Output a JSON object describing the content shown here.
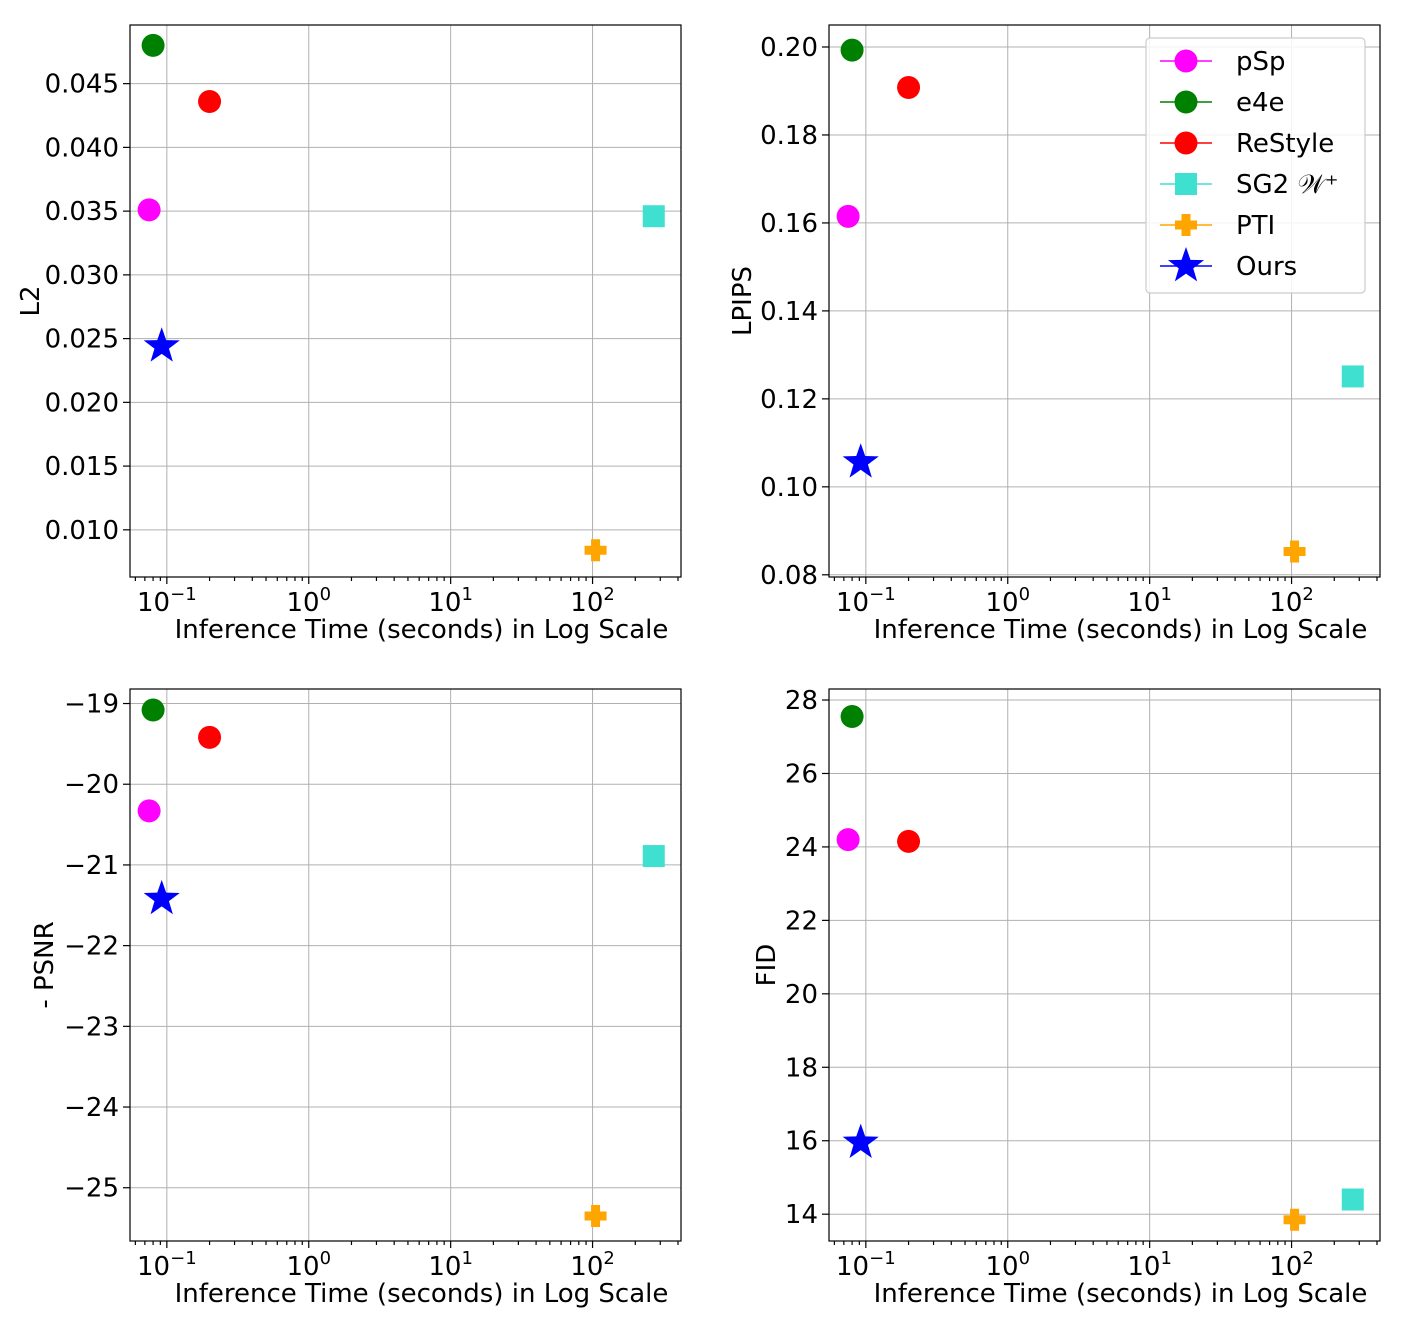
{
  "figure": {
    "legend": {
      "placement": "top-right of upper-right panel",
      "entries": [
        {
          "label": "pSp",
          "color": "#ff00ff",
          "marker": "circle"
        },
        {
          "label": "e4e",
          "color": "#008000",
          "marker": "circle"
        },
        {
          "label": "ReStyle",
          "color": "#ff0000",
          "marker": "circle"
        },
        {
          "label": "SG2 𝒲⁺",
          "color": "#40e0d0",
          "marker": "square"
        },
        {
          "label": "PTI",
          "color": "#ffa500",
          "marker": "plus"
        },
        {
          "label": "Ours",
          "color": "#0000ff",
          "marker": "star"
        }
      ]
    }
  },
  "chart_data": [
    {
      "type": "scatter",
      "title": "",
      "xlabel": "Inference Time (seconds) in Log Scale",
      "ylabel": "L2",
      "xscale": "log",
      "xlim": [
        0.055,
        420
      ],
      "ylim": [
        0.0063,
        0.0496
      ],
      "xticks": [
        0.1,
        1,
        10,
        100
      ],
      "xtick_labels": [
        {
          "base": "10",
          "exp": "−1"
        },
        {
          "base": "10",
          "exp": "0"
        },
        {
          "base": "10",
          "exp": "1"
        },
        {
          "base": "10",
          "exp": "2"
        }
      ],
      "yticks": [
        0.01,
        0.015,
        0.02,
        0.025,
        0.03,
        0.035,
        0.04,
        0.045
      ],
      "ytick_labels": [
        "0.010",
        "0.015",
        "0.020",
        "0.025",
        "0.030",
        "0.035",
        "0.040",
        "0.045"
      ],
      "grid": true,
      "series": [
        {
          "name": "pSp",
          "x": [
            0.075
          ],
          "y": [
            0.0351
          ]
        },
        {
          "name": "e4e",
          "x": [
            0.08
          ],
          "y": [
            0.048
          ]
        },
        {
          "name": "ReStyle",
          "x": [
            0.2
          ],
          "y": [
            0.0436
          ]
        },
        {
          "name": "SG2 𝒲⁺",
          "x": [
            270
          ],
          "y": [
            0.0346
          ]
        },
        {
          "name": "PTI",
          "x": [
            105
          ],
          "y": [
            0.0084
          ]
        },
        {
          "name": "Ours",
          "x": [
            0.092
          ],
          "y": [
            0.0244
          ]
        }
      ]
    },
    {
      "type": "scatter",
      "title": "",
      "xlabel": "Inference Time (seconds) in Log Scale",
      "ylabel": "LPIPS",
      "xscale": "log",
      "xlim": [
        0.055,
        420
      ],
      "ylim": [
        0.0795,
        0.205
      ],
      "xticks": [
        0.1,
        1,
        10,
        100
      ],
      "xtick_labels": [
        {
          "base": "10",
          "exp": "−1"
        },
        {
          "base": "10",
          "exp": "0"
        },
        {
          "base": "10",
          "exp": "1"
        },
        {
          "base": "10",
          "exp": "2"
        }
      ],
      "yticks": [
        0.08,
        0.1,
        0.12,
        0.14,
        0.16,
        0.18,
        0.2
      ],
      "ytick_labels": [
        "0.08",
        "0.10",
        "0.12",
        "0.14",
        "0.16",
        "0.18",
        "0.20"
      ],
      "grid": true,
      "series": [
        {
          "name": "pSp",
          "x": [
            0.075
          ],
          "y": [
            0.1615
          ]
        },
        {
          "name": "e4e",
          "x": [
            0.08
          ],
          "y": [
            0.1993
          ]
        },
        {
          "name": "ReStyle",
          "x": [
            0.2
          ],
          "y": [
            0.1908
          ]
        },
        {
          "name": "SG2 𝒲⁺",
          "x": [
            270
          ],
          "y": [
            0.1251
          ]
        },
        {
          "name": "PTI",
          "x": [
            105
          ],
          "y": [
            0.0853
          ]
        },
        {
          "name": "Ours",
          "x": [
            0.092
          ],
          "y": [
            0.1056
          ]
        }
      ]
    },
    {
      "type": "scatter",
      "title": "",
      "xlabel": "Inference Time (seconds) in Log Scale",
      "ylabel": "- PSNR",
      "xscale": "log",
      "xlim": [
        0.055,
        420
      ],
      "ylim": [
        -25.66,
        -18.82
      ],
      "xticks": [
        0.1,
        1,
        10,
        100
      ],
      "xtick_labels": [
        {
          "base": "10",
          "exp": "−1"
        },
        {
          "base": "10",
          "exp": "0"
        },
        {
          "base": "10",
          "exp": "1"
        },
        {
          "base": "10",
          "exp": "2"
        }
      ],
      "yticks": [
        -25,
        -24,
        -23,
        -22,
        -21,
        -20,
        -19
      ],
      "ytick_labels": [
        "−25",
        "−24",
        "−23",
        "−22",
        "−21",
        "−20",
        "−19"
      ],
      "grid": true,
      "series": [
        {
          "name": "pSp",
          "x": [
            0.075
          ],
          "y": [
            -20.33
          ]
        },
        {
          "name": "e4e",
          "x": [
            0.08
          ],
          "y": [
            -19.08
          ]
        },
        {
          "name": "ReStyle",
          "x": [
            0.2
          ],
          "y": [
            -19.42
          ]
        },
        {
          "name": "SG2 𝒲⁺",
          "x": [
            270
          ],
          "y": [
            -20.89
          ]
        },
        {
          "name": "PTI",
          "x": [
            105
          ],
          "y": [
            -25.35
          ]
        },
        {
          "name": "Ours",
          "x": [
            0.092
          ],
          "y": [
            -21.42
          ]
        }
      ]
    },
    {
      "type": "scatter",
      "title": "",
      "xlabel": "Inference Time (seconds) in Log Scale",
      "ylabel": "FID",
      "xscale": "log",
      "xlim": [
        0.055,
        420
      ],
      "ylim": [
        13.27,
        28.3
      ],
      "xticks": [
        0.1,
        1,
        10,
        100
      ],
      "xtick_labels": [
        {
          "base": "10",
          "exp": "−1"
        },
        {
          "base": "10",
          "exp": "0"
        },
        {
          "base": "10",
          "exp": "1"
        },
        {
          "base": "10",
          "exp": "2"
        }
      ],
      "yticks": [
        14,
        16,
        18,
        20,
        22,
        24,
        26,
        28
      ],
      "ytick_labels": [
        "14",
        "16",
        "18",
        "20",
        "22",
        "24",
        "26",
        "28"
      ],
      "grid": true,
      "series": [
        {
          "name": "pSp",
          "x": [
            0.075
          ],
          "y": [
            24.2
          ]
        },
        {
          "name": "e4e",
          "x": [
            0.08
          ],
          "y": [
            27.55
          ]
        },
        {
          "name": "ReStyle",
          "x": [
            0.2
          ],
          "y": [
            24.15
          ]
        },
        {
          "name": "SG2 𝒲⁺",
          "x": [
            270
          ],
          "y": [
            14.4
          ]
        },
        {
          "name": "PTI",
          "x": [
            105
          ],
          "y": [
            13.85
          ]
        },
        {
          "name": "Ours",
          "x": [
            0.092
          ],
          "y": [
            15.95
          ]
        }
      ]
    }
  ]
}
